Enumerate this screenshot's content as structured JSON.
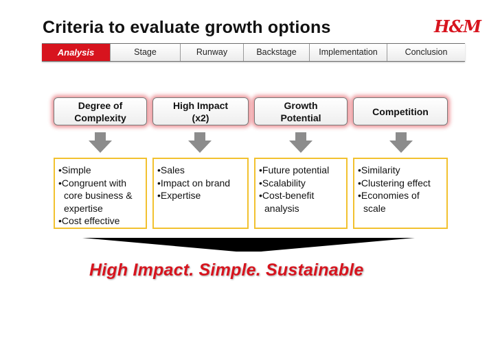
{
  "title": "Criteria to evaluate growth options",
  "logo_text": "H&M",
  "tabs": [
    {
      "label": "Analysis",
      "active": true
    },
    {
      "label": "Stage",
      "active": false
    },
    {
      "label": "Runway",
      "active": false
    },
    {
      "label": "Backstage",
      "active": false
    },
    {
      "label": "Implementation",
      "active": false
    },
    {
      "label": "Conclusion",
      "active": false
    }
  ],
  "criteria": [
    {
      "label": "Degree of\nComplexity",
      "items": [
        "Simple",
        "Congruent with core business & expertise",
        "Cost effective"
      ]
    },
    {
      "label": "High Impact\n(x2)",
      "items": [
        "Sales",
        "Impact on brand",
        "Expertise"
      ]
    },
    {
      "label": "Growth\nPotential",
      "items": [
        "Future potential",
        "Scalability",
        "Cost-benefit analysis"
      ]
    },
    {
      "label": "Competition",
      "items": [
        "Similarity",
        "Clustering effect",
        "Economies of scale"
      ]
    }
  ],
  "tagline": "High Impact. Simple. Sustainable",
  "colors": {
    "brand_red": "#d7141e",
    "box_border": "#f2c12e",
    "arrow_gray": "#8c8c8c"
  }
}
